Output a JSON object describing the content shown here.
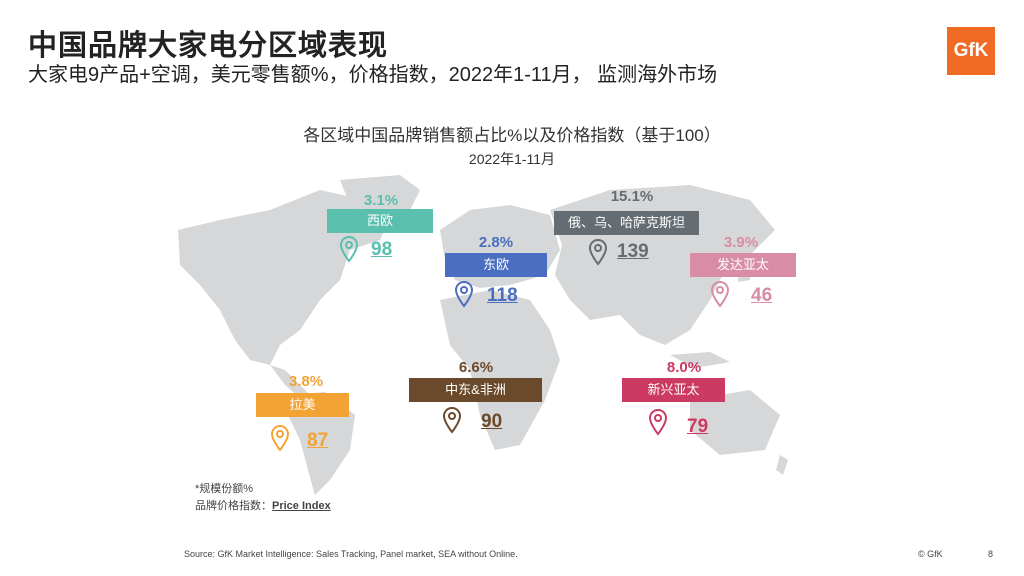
{
  "header": {
    "title": "中国品牌大家电分区域表现",
    "subtitle": "大家电9产品+空调，美元零售额%，价格指数，2022年1-11月， 监测海外市场",
    "logo_text": "GfK"
  },
  "chart": {
    "title": "各区域中国品牌销售额占比%以及价格指数（基于100）",
    "subtitle": "2022年1-11月"
  },
  "regions": [
    {
      "name": "西欧",
      "share": "3.1%",
      "index": "98",
      "color": "#5bbfae"
    },
    {
      "name": "东欧",
      "share": "2.8%",
      "index": "118",
      "color": "#4a6fc1"
    },
    {
      "name": "俄、乌、哈萨克斯坦",
      "share": "15.1%",
      "index": "139",
      "color": "#666d72"
    },
    {
      "name": "发达亚太",
      "share": "3.9%",
      "index": "46",
      "color": "#d98ca6"
    },
    {
      "name": "拉美",
      "share": "3.8%",
      "index": "87",
      "color": "#f3a334"
    },
    {
      "name": "中东&非洲",
      "share": "6.6%",
      "index": "90",
      "color": "#6b4a2b"
    },
    {
      "name": "新兴亚太",
      "share": "8.0%",
      "index": "79",
      "color": "#cc3a63"
    }
  ],
  "legend": {
    "share_note": "*规模份额%",
    "index_prefix": "品牌价格指数：",
    "index_label": "Price Index"
  },
  "footer": {
    "source": "Source: GfK Market Intelligence: Sales Tracking, Panel market, SEA without Online.",
    "copyright": "© GfK",
    "page": "8"
  },
  "colors": {
    "map": "#d6d7d8",
    "brand": "#f06a23"
  }
}
